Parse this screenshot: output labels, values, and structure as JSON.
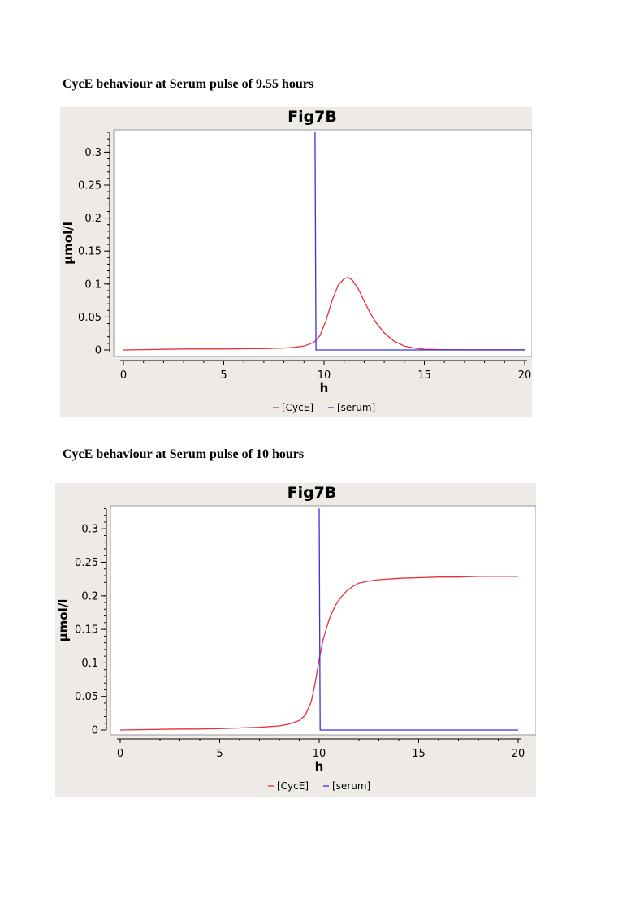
{
  "captions": [
    "CycE behaviour at Serum pulse of 9.55 hours",
    "CycE behaviour at Serum pulse of 10 hours"
  ],
  "colors": {
    "cyce": "#e8303a",
    "serum": "#3434e0",
    "panel": "#eeebe6"
  },
  "chart_data": [
    {
      "type": "line",
      "title": "Fig7B",
      "xlabel": "h",
      "ylabel": "µmol/l",
      "xlim": [
        0,
        20
      ],
      "ylim": [
        0,
        0.33
      ],
      "xticks": [
        "0",
        "5",
        "10",
        "15",
        "20"
      ],
      "yticks": [
        "0",
        "0.05",
        "0.1",
        "0.15",
        "0.2",
        "0.25",
        "0.3"
      ],
      "grid": false,
      "legend_position": "bottom",
      "series": [
        {
          "name": "[CycE]",
          "color": "#e8303a",
          "x": [
            0,
            1,
            2,
            3,
            4,
            5,
            6,
            7,
            7.5,
            8,
            8.5,
            9,
            9.3,
            9.55,
            9.8,
            10.1,
            10.4,
            10.7,
            11.0,
            11.2,
            11.4,
            11.7,
            12.0,
            12.3,
            12.6,
            13.0,
            13.5,
            14.0,
            14.5,
            15.0,
            16,
            17,
            18,
            19,
            20
          ],
          "values": [
            0,
            0.0005,
            0.001,
            0.0015,
            0.0015,
            0.0015,
            0.0018,
            0.002,
            0.0025,
            0.003,
            0.004,
            0.006,
            0.009,
            0.013,
            0.022,
            0.045,
            0.075,
            0.098,
            0.108,
            0.11,
            0.106,
            0.093,
            0.074,
            0.056,
            0.041,
            0.026,
            0.013,
            0.006,
            0.003,
            0.001,
            0.0005,
            0.0003,
            0.0002,
            0.0002,
            0.0002
          ]
        },
        {
          "name": "[serum]",
          "color": "#3434e0",
          "x": [
            9.55,
            9.55,
            9.6,
            20
          ],
          "values": [
            0.33,
            0.33,
            0,
            0
          ]
        }
      ]
    },
    {
      "type": "line",
      "title": "Fig7B",
      "xlabel": "h",
      "ylabel": "µmol/l",
      "xlim": [
        0,
        20
      ],
      "ylim": [
        0,
        0.33
      ],
      "xticks": [
        "0",
        "5",
        "10",
        "15",
        "20"
      ],
      "yticks": [
        "0",
        "0.05",
        "0.1",
        "0.15",
        "0.2",
        "0.25",
        "0.3"
      ],
      "grid": false,
      "legend_position": "bottom",
      "series": [
        {
          "name": "[CycE]",
          "color": "#e8303a",
          "x": [
            0,
            1,
            2,
            3,
            4,
            5,
            6,
            7,
            8,
            8.5,
            9,
            9.3,
            9.6,
            9.8,
            10.0,
            10.2,
            10.5,
            10.8,
            11.1,
            11.4,
            11.7,
            12.0,
            12.5,
            13,
            14,
            15,
            16,
            17,
            18,
            19,
            20
          ],
          "values": [
            0,
            0.0005,
            0.001,
            0.0015,
            0.0015,
            0.002,
            0.003,
            0.004,
            0.006,
            0.009,
            0.014,
            0.022,
            0.042,
            0.07,
            0.105,
            0.135,
            0.165,
            0.185,
            0.198,
            0.208,
            0.214,
            0.219,
            0.222,
            0.224,
            0.226,
            0.227,
            0.228,
            0.228,
            0.229,
            0.229,
            0.229
          ]
        },
        {
          "name": "[serum]",
          "color": "#3434e0",
          "x": [
            10.0,
            10.0,
            10.05,
            20
          ],
          "values": [
            0.33,
            0.33,
            0,
            0
          ]
        }
      ]
    }
  ]
}
